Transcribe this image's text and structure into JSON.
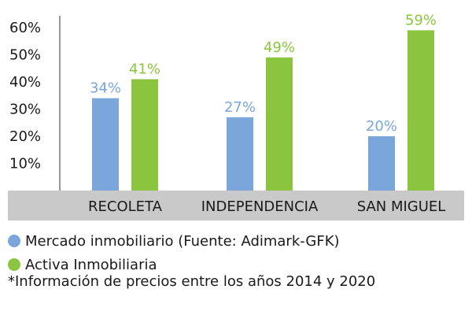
{
  "chart_data": {
    "type": "bar",
    "categories": [
      "RECOLETA",
      "INDEPENDENCIA",
      "SAN MIGUEL"
    ],
    "series": [
      {
        "name": "Mercado inmobiliario (Fuente: Adimark-GFK)",
        "values": [
          34,
          27,
          20
        ],
        "labels": [
          "34%",
          "27%",
          "20%"
        ],
        "color": "#7aa6dc"
      },
      {
        "name": "Activa Inmobiliaria",
        "values": [
          41,
          49,
          59
        ],
        "labels": [
          "41%",
          "49%",
          "59%"
        ],
        "color": "#8bc53f"
      }
    ],
    "ylim": [
      0,
      60
    ],
    "yticks": [
      10,
      20,
      30,
      40,
      50,
      60
    ],
    "ytick_labels": [
      "10%",
      "20%",
      "30%",
      "40%",
      "50%",
      "60%"
    ],
    "grid": false,
    "category_band_color": "#c9c9c9",
    "legend_position": "bottom-left",
    "footnote": "*Información de precios entre los años 2014 y 2020"
  }
}
